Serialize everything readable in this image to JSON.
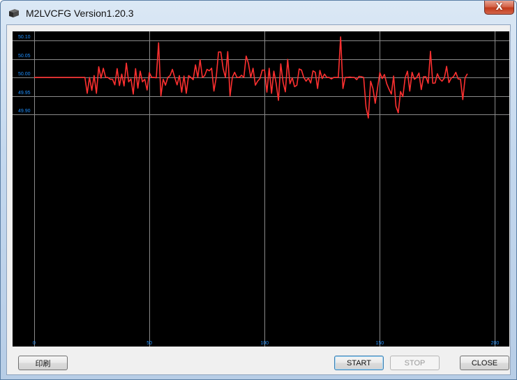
{
  "window": {
    "title": "M2LVCFG Version1.20.3",
    "close_glyph": "X",
    "icon": "app-icon"
  },
  "buttons": {
    "print_label": "印刷",
    "start_label": "START",
    "stop_label": "STOP",
    "close_label": "CLOSE"
  },
  "chart_data": {
    "type": "line",
    "title": "",
    "xlabel": "",
    "ylabel": "",
    "xlim": [
      0,
      205
    ],
    "ylim": [
      49.27,
      50.125
    ],
    "grid": true,
    "x_ticks": [
      0,
      50,
      100,
      150,
      200
    ],
    "y_ticks": [
      50.1,
      50.05,
      50.0,
      49.95,
      49.9
    ],
    "x_tick_labels": [
      "0",
      "50",
      "100",
      "150",
      "200"
    ],
    "y_tick_labels": [
      "50.10",
      "50.05",
      "50.00",
      "49.95",
      "49.90"
    ],
    "colors": {
      "background": "#000000",
      "grid": "#8a8a8a",
      "tick_label": "#1e90ff",
      "line": "#ff3030"
    },
    "series": [
      {
        "values": [
          50.0,
          50.0,
          50.0,
          50.0,
          50.0,
          50.0,
          50.0,
          50.0,
          50.0,
          50.0,
          50.0,
          50.0,
          50.0,
          50.0,
          50.0,
          50.0,
          50.0,
          50.0,
          50.0,
          50.0,
          50.0,
          50.0,
          50.0,
          49.957,
          50.0,
          49.965,
          50.005,
          49.957,
          50.029,
          49.998,
          50.025,
          50.0,
          50.0,
          49.995,
          49.995,
          49.98,
          50.024,
          49.978,
          50.009,
          49.977,
          50.039,
          49.988,
          49.996,
          49.955,
          50.024,
          49.971,
          50.017,
          49.988,
          49.995,
          49.966,
          50.013,
          50.0,
          50.0,
          49.999,
          50.094,
          49.95,
          49.995,
          49.979,
          50.0,
          50.005,
          50.022,
          50.0,
          49.98,
          50.005,
          49.96,
          50.004,
          49.957,
          50.005,
          50.0,
          49.994,
          50.034,
          50.0,
          50.048,
          50.0,
          50.005,
          50.022,
          50.018,
          50.025,
          49.963,
          50.0,
          50.069,
          50.069,
          50.024,
          50.0,
          50.07,
          49.95,
          50.0,
          50.014,
          50.0,
          50.0,
          50.006,
          50.0,
          50.058,
          50.038,
          50.0,
          50.025,
          49.979,
          49.99,
          49.997,
          50.02,
          50.02,
          49.96,
          50.025,
          49.957,
          50.017,
          49.984,
          49.938,
          50.037,
          49.987,
          49.961,
          50.049,
          49.983,
          49.999,
          49.975,
          49.979,
          50.023,
          50.02,
          50.0,
          49.99,
          49.998,
          49.985,
          50.018,
          50.014,
          49.97,
          50.019,
          49.997,
          50.009,
          50.0,
          50.0,
          49.996,
          50.0,
          50.0,
          50.0,
          50.11,
          49.97,
          50.0,
          50.0,
          50.001,
          50.0,
          50.0,
          49.994,
          50.003,
          50.002,
          50.0,
          49.92,
          49.89,
          49.99,
          49.97,
          49.93,
          49.971,
          50.013,
          49.997,
          50.008,
          49.983,
          49.968,
          49.955,
          50.004,
          49.922,
          49.904,
          49.962,
          49.948,
          49.999,
          50.017,
          49.963,
          50.014,
          49.995,
          50.0,
          50.012,
          49.967,
          50.002,
          50.002,
          49.984,
          50.071,
          49.984,
          49.985,
          50.01,
          49.996,
          49.99,
          49.998,
          50.03,
          49.986,
          49.998,
          50.002,
          50.014,
          49.996,
          49.995,
          49.94,
          49.999,
          50.01
        ]
      }
    ]
  }
}
